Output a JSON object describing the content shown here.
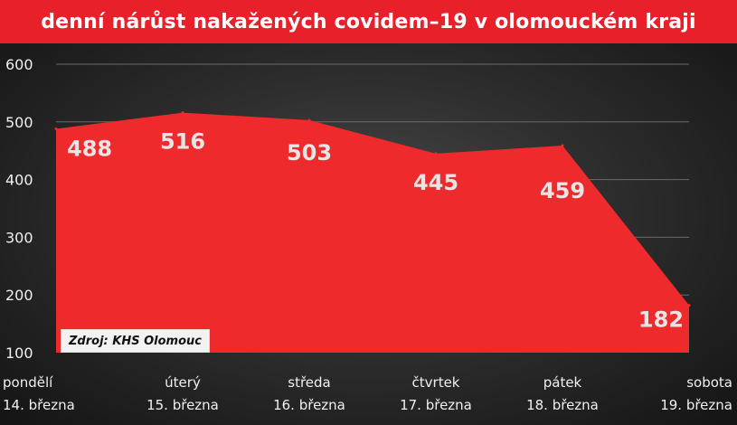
{
  "chart_data": {
    "type": "area",
    "title": "denní nárůst nakažených covidem–19 v olomouckém kraji",
    "categories": [
      [
        "pondělí",
        "14. března"
      ],
      [
        "úterý",
        "15. března"
      ],
      [
        "středa",
        "16. března"
      ],
      [
        "čtvrtek",
        "17. března"
      ],
      [
        "pátek",
        "18. března"
      ],
      [
        "sobota",
        "19. března"
      ]
    ],
    "series": [
      {
        "values": [
          488,
          516,
          503,
          445,
          459,
          182
        ]
      }
    ],
    "ylim": [
      100,
      600
    ],
    "yticks": [
      100,
      200,
      300,
      400,
      500,
      600
    ],
    "grid": true,
    "source": "Zdroj: KHS Olomouc",
    "colors": {
      "area": "#ee2a2c",
      "title_bg": "#e8202a",
      "grid": "#6a6a6a",
      "tick_text": "#f0f0f0",
      "value_text": "#e6e6e6"
    }
  }
}
